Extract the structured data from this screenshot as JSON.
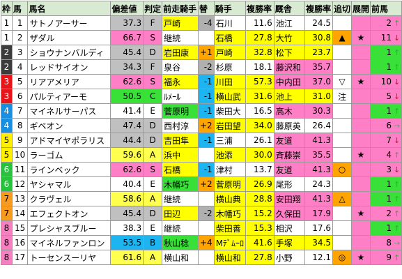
{
  "headers": {
    "waku": "枠",
    "num": "馬",
    "name": "馬名",
    "dev": "偏差値",
    "judge": "判定",
    "prev_jockey": "前走騎手",
    "change": "替",
    "jockey": "騎手",
    "j_rate": "複勝率",
    "sire": "厩舎",
    "s_rate": "複勝率",
    "trend": "追切",
    "tenkai": "展開",
    "pop": "前馬"
  },
  "colors": {
    "waku1": "#ffffff",
    "waku2": "#3c3c3c",
    "waku3": "#e8141a",
    "waku4": "#1a8fe0",
    "waku5": "#ffef00",
    "waku6": "#28c23c",
    "waku7": "#f79a1e",
    "waku8": "#f57fc1",
    "dev_S": "#ff7fc6",
    "dev_A": "#ffff4d",
    "dev_B": "#1db4f0",
    "dev_C": "#38e038",
    "dev_D": "#c0c0c0",
    "prev_yellow": "#ffff00",
    "prev_green": "#38e038",
    "change_plus": "#ffa400",
    "change_minus": "#1db4f0",
    "change_gray": "#b0b0b0",
    "jockey_yellow": "#ffff00",
    "sire_pink": "#ff7fc6",
    "sire_yellow": "#ffff00",
    "trend_orange": "#ffa400",
    "tenkai_pink": "#ff7fc6",
    "tenkai_green": "#38e038",
    "pop_pink": "#ff7fc6",
    "pop_green": "#38e038"
  },
  "rows": [
    {
      "waku": "1",
      "num": "1",
      "name": "サトノアーサー",
      "dev": "37.3",
      "judge": "F",
      "prev": "戸崎",
      "change": "-4",
      "jockey": "石川",
      "j_rate": "11.6",
      "sire": "池江",
      "s_rate": "24.5",
      "trend": "",
      "tenkai": "",
      "pop": "2",
      "arrow": "up"
    },
    {
      "waku": "1",
      "num": "2",
      "name": "ザダル",
      "dev": "66.7",
      "judge": "S",
      "prev": "継続",
      "change": "",
      "jockey": "石橋",
      "j_rate": "27.8",
      "sire": "大竹",
      "s_rate": "30.8",
      "trend": "▲",
      "tenkai": "★",
      "pop": "11",
      "arrow": "down"
    },
    {
      "waku": "2",
      "num": "3",
      "name": "ショウナンバルディ",
      "dev": "45.4",
      "judge": "D",
      "prev": "岩田康",
      "change": "+1",
      "jockey": "戸崎",
      "j_rate": "32.8",
      "sire": "松下",
      "s_rate": "23.7",
      "trend": "",
      "tenkai": "",
      "pop": "1",
      "arrow": "up"
    },
    {
      "waku": "2",
      "num": "4",
      "name": "レッドサイオン",
      "dev": "34.3",
      "judge": "F",
      "prev": "泉谷",
      "change": "-2",
      "jockey": "杉原",
      "j_rate": "18.1",
      "sire": "藤沢和",
      "s_rate": "35.7",
      "trend": "",
      "tenkai": "",
      "pop": "1",
      "arrow": "up"
    },
    {
      "waku": "3",
      "num": "5",
      "name": "リアアメリア",
      "dev": "62.6",
      "judge": "S",
      "prev": "福永",
      "change": "-1",
      "jockey": "川田",
      "j_rate": "57.3",
      "sire": "中内田",
      "s_rate": "37.0",
      "trend": "▽",
      "tenkai": "★",
      "pop": "10",
      "arrow": "down"
    },
    {
      "waku": "3",
      "num": "6",
      "name": "パルティアーモ",
      "dev": "50.5",
      "judge": "C",
      "prev": "ﾙﾒｰﾙ",
      "change": "-1",
      "jockey": "横山武",
      "j_rate": "31.6",
      "sire": "池上",
      "s_rate": "31.0",
      "trend": "注",
      "tenkai": "",
      "pop": "5",
      "arrow": "down"
    },
    {
      "waku": "4",
      "num": "7",
      "name": "マイネルサーパス",
      "dev": "41.4",
      "judge": "E",
      "prev": "菅原明",
      "change": "-1",
      "jockey": "柴田大",
      "j_rate": "16.5",
      "sire": "高木",
      "s_rate": "30.3",
      "trend": "",
      "tenkai": "",
      "pop": "1",
      "arrow": "up"
    },
    {
      "waku": "4",
      "num": "8",
      "name": "ギベオン",
      "dev": "47.4",
      "judge": "D",
      "prev": "西村淳",
      "change": "+2",
      "jockey": "岩田望",
      "j_rate": "34.0",
      "sire": "藤原英",
      "s_rate": "26.4",
      "trend": "",
      "tenkai": "",
      "pop": "6",
      "arrow": "flat"
    },
    {
      "waku": "5",
      "num": "9",
      "name": "アドマイヤポラリス",
      "dev": "44.4",
      "judge": "D",
      "prev": "吉田隼",
      "change": "-1",
      "jockey": "三浦",
      "j_rate": "26.1",
      "sire": "友道",
      "s_rate": "41.3",
      "trend": "",
      "tenkai": "",
      "pop": "7",
      "arrow": "down"
    },
    {
      "waku": "5",
      "num": "10",
      "name": "ラーゴム",
      "dev": "59.6",
      "judge": "A",
      "prev": "浜中",
      "change": "",
      "jockey": "池添",
      "j_rate": "30.0",
      "sire": "斉藤崇",
      "s_rate": "35.5",
      "trend": "",
      "tenkai": "★",
      "pop": "4",
      "arrow": "up"
    },
    {
      "waku": "6",
      "num": "11",
      "name": "ラインベック",
      "dev": "62.6",
      "judge": "S",
      "prev": "石橋",
      "change": "-1",
      "jockey": "津村",
      "j_rate": "13.7",
      "sire": "友道",
      "s_rate": "41.3",
      "trend": "○",
      "tenkai": "",
      "pop": "3",
      "arrow": "down"
    },
    {
      "waku": "6",
      "num": "12",
      "name": "ヤシャマル",
      "dev": "40.4",
      "judge": "E",
      "prev": "木幡巧",
      "change": "+2",
      "jockey": "菅原明",
      "j_rate": "26.9",
      "sire": "尾形",
      "s_rate": "24.3",
      "trend": "",
      "tenkai": "",
      "pop": "1",
      "arrow": "up"
    },
    {
      "waku": "7",
      "num": "13",
      "name": "クラヴェル",
      "dev": "58.6",
      "judge": "A",
      "prev": "継続",
      "change": "",
      "jockey": "横山典",
      "j_rate": "28.8",
      "sire": "安田翔",
      "s_rate": "41.3",
      "trend": "△",
      "tenkai": "",
      "pop": "1",
      "arrow": "up"
    },
    {
      "waku": "7",
      "num": "14",
      "name": "エフェクトオン",
      "dev": "45.4",
      "judge": "D",
      "prev": "田辺",
      "change": "-2",
      "jockey": "木幡巧",
      "j_rate": "15.2",
      "sire": "久保田",
      "s_rate": "17.9",
      "trend": "",
      "tenkai": "★",
      "pop": "2",
      "arrow": "up"
    },
    {
      "waku": "8",
      "num": "15",
      "name": "プレシャスブルー",
      "dev": "38.3",
      "judge": "E",
      "prev": "継続",
      "change": "",
      "jockey": "柴田善",
      "j_rate": "15.3",
      "sire": "相沢",
      "s_rate": "17.6",
      "trend": "",
      "tenkai": "",
      "pop": "1",
      "arrow": "up"
    },
    {
      "waku": "8",
      "num": "16",
      "name": "マイネルファンロン",
      "dev": "53.5",
      "judge": "B",
      "prev": "秋山稔",
      "change": "+4",
      "jockey": "Mﾃﾞﾑｰﾛ",
      "j_rate": "41.6",
      "sire": "手塚",
      "s_rate": "34.5",
      "trend": "",
      "tenkai": "",
      "pop": "8",
      "arrow": "flat"
    },
    {
      "waku": "8",
      "num": "17",
      "name": "トーセンスーリヤ",
      "dev": "61.6",
      "judge": "A",
      "prev": "横山和",
      "change": "",
      "jockey": "横山和",
      "j_rate": "27.8",
      "sire": "小野",
      "s_rate": "12.1",
      "trend": "◎",
      "tenkai": "★",
      "pop": "9",
      "arrow": "up"
    }
  ]
}
